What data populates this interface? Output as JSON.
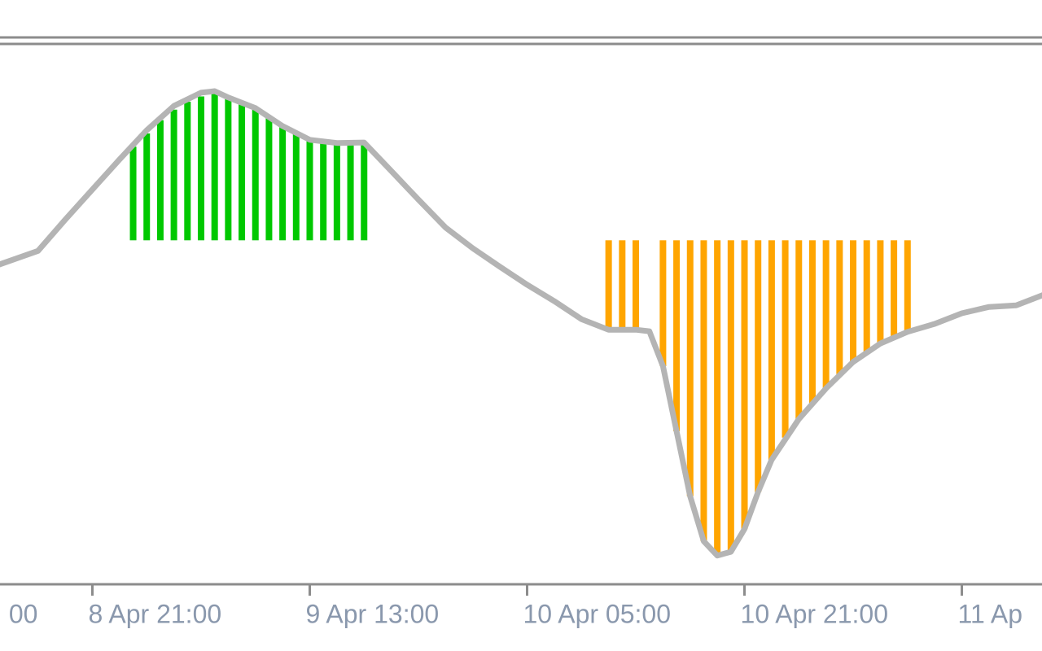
{
  "chart_data": {
    "type": "line",
    "xlim": [
      -6.8,
      69.9
    ],
    "ylim": [
      0,
      100
    ],
    "xticks": [
      {
        "value": -16,
        "label": "00"
      },
      {
        "value": 0,
        "label": "8 Apr 21:00"
      },
      {
        "value": 16,
        "label": "9 Apr 13:00"
      },
      {
        "value": 32,
        "label": "10 Apr 05:00"
      },
      {
        "value": 48,
        "label": "10 Apr 21:00"
      },
      {
        "value": 64,
        "label": "11 Ap"
      }
    ],
    "bar_base": 63.8,
    "series": [
      {
        "type": "line",
        "color": "#b4b4b4",
        "x": [
          -7,
          -4,
          -2,
          0,
          2,
          4,
          6,
          8,
          9,
          10,
          12,
          14,
          16,
          18,
          20,
          22,
          24,
          26,
          28,
          30,
          32,
          34,
          36,
          38,
          40,
          41,
          42,
          43,
          44,
          45,
          46,
          47,
          48,
          49,
          50,
          52,
          54,
          56,
          58,
          60,
          62,
          64,
          66,
          68,
          70
        ],
        "values": [
          59.1,
          61.8,
          67.7,
          73.4,
          79.1,
          84.6,
          89.2,
          91.7,
          92.0,
          90.8,
          88.8,
          85.4,
          82.8,
          82.2,
          82.3,
          76.9,
          71.5,
          66.2,
          62.3,
          58.8,
          55.4,
          52.3,
          48.9,
          46.9,
          46.9,
          46.6,
          40.0,
          27.7,
          15.4,
          6.9,
          4.2,
          4.9,
          9.2,
          16.2,
          22.3,
          30.0,
          35.8,
          40.8,
          44.3,
          46.5,
          48.0,
          50.0,
          51.2,
          51.5,
          53.5
        ]
      },
      {
        "type": "bar",
        "color": "#00c800",
        "x": [
          3,
          4,
          5,
          6,
          7,
          8,
          9,
          10,
          11,
          12,
          13,
          14,
          15,
          16,
          17,
          18,
          19,
          20
        ],
        "values": [
          81.5,
          84.0,
          86.5,
          88.5,
          90.0,
          91.0,
          91.5,
          90.5,
          89.5,
          88.5,
          87.0,
          85.5,
          84.0,
          83.0,
          82.5,
          82.2,
          82.2,
          82.2
        ]
      },
      {
        "type": "bar",
        "color": "#ffa500",
        "x": [
          38,
          39,
          40,
          41,
          42,
          43,
          44,
          45,
          46,
          47,
          48,
          49,
          50,
          51,
          52,
          53,
          54,
          55,
          56,
          57,
          58,
          59,
          60
        ],
        "values": [
          46.9,
          46.9,
          46.9,
          null,
          40.0,
          27.7,
          15.4,
          6.9,
          4.2,
          4.9,
          9.2,
          16.2,
          22.3,
          26.5,
          30.0,
          33.0,
          35.8,
          38.5,
          40.8,
          42.7,
          44.3,
          45.5,
          46.5
        ]
      }
    ]
  }
}
